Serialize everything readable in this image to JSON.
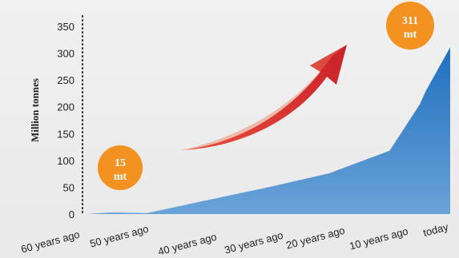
{
  "chart_data": {
    "type": "area",
    "title": "",
    "xlabel": "",
    "ylabel": "Million tonnes",
    "categories": [
      "60 years ago",
      "50 years ago",
      "40 years ago",
      "30 years ago",
      "20 years ago",
      "10 years ago",
      "today"
    ],
    "x": [
      0,
      0.4,
      1,
      2,
      3,
      4,
      5,
      5.5,
      5.6,
      6
    ],
    "values": [
      0,
      3,
      2,
      26,
      50,
      76,
      118,
      205,
      230,
      311
    ],
    "ylim": [
      0,
      350
    ],
    "yticks": [
      0,
      50,
      100,
      150,
      200,
      250,
      300,
      350
    ],
    "grid": false,
    "colors": {
      "area_top": "#1f6fbf",
      "area_bottom": "#5b9bd5",
      "bubble": "#f39220",
      "arrow": "#d9262b"
    },
    "annotations": [
      {
        "label": "15 mt",
        "line1": "15",
        "line2": "mt"
      },
      {
        "label": "311 mt",
        "line1": "311",
        "line2": "mt"
      }
    ]
  }
}
